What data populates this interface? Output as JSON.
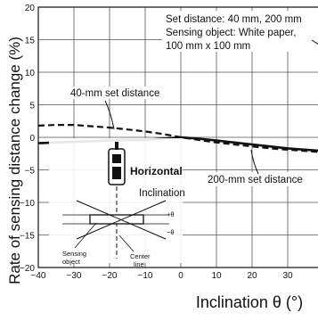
{
  "chart_data": {
    "type": "line",
    "xlabel": "Inclination θ (°)",
    "ylabel": "Rate of sensing distance change (%)",
    "xlim": [
      -40,
      40
    ],
    "ylim": [
      -20,
      20
    ],
    "x_ticks": [
      "−40",
      "−30",
      "−20",
      "−10",
      "0",
      "10",
      "20",
      "30",
      "40"
    ],
    "y_ticks": [
      "20",
      "15",
      "10",
      "5",
      "0",
      "−5",
      "−10",
      "−15",
      "−20"
    ],
    "grid": true,
    "annotation_box": {
      "line1": "Set distance: 40 mm, 200 mm",
      "line2": "Sensing object: White paper,",
      "line3": "100 mm x 100 mm"
    },
    "series": [
      {
        "name": "40-mm set distance",
        "style": "dashed",
        "x": [
          -40,
          -35,
          -30,
          -25,
          -20,
          -15,
          -10,
          -5,
          0,
          5,
          10,
          15,
          20,
          25,
          30,
          35,
          40
        ],
        "y": [
          1.8,
          1.9,
          1.9,
          1.7,
          1.5,
          1.2,
          0.9,
          0.5,
          0.0,
          -0.4,
          -0.8,
          -1.1,
          -1.4,
          -1.7,
          -1.9,
          -2.1,
          -2.3
        ]
      },
      {
        "name": "200-mm set distance",
        "style": "solid",
        "x": [
          -40,
          -35,
          -30,
          -25,
          -20,
          -15,
          -10,
          -5,
          0,
          5,
          10,
          15,
          20,
          25,
          30,
          35,
          40
        ],
        "y": [
          -0.9,
          -0.8,
          -0.7,
          -0.6,
          -0.5,
          -0.4,
          -0.4,
          -0.2,
          0.0,
          -0.2,
          -0.5,
          -0.8,
          -1.1,
          -1.4,
          -1.7,
          -1.9,
          -2.1
        ]
      }
    ],
    "legend_labels": {
      "dashed": "40-mm set distance",
      "solid": "200-mm set distance"
    },
    "inset": {
      "horizontal": "Horizontal",
      "inclination": "Inclination",
      "plus_theta": "+θ",
      "minus_theta": "−θ",
      "sensing_object_1": "Sensing",
      "sensing_object_2": "object",
      "center_line_1": "Center",
      "center_line_2": "line"
    }
  }
}
